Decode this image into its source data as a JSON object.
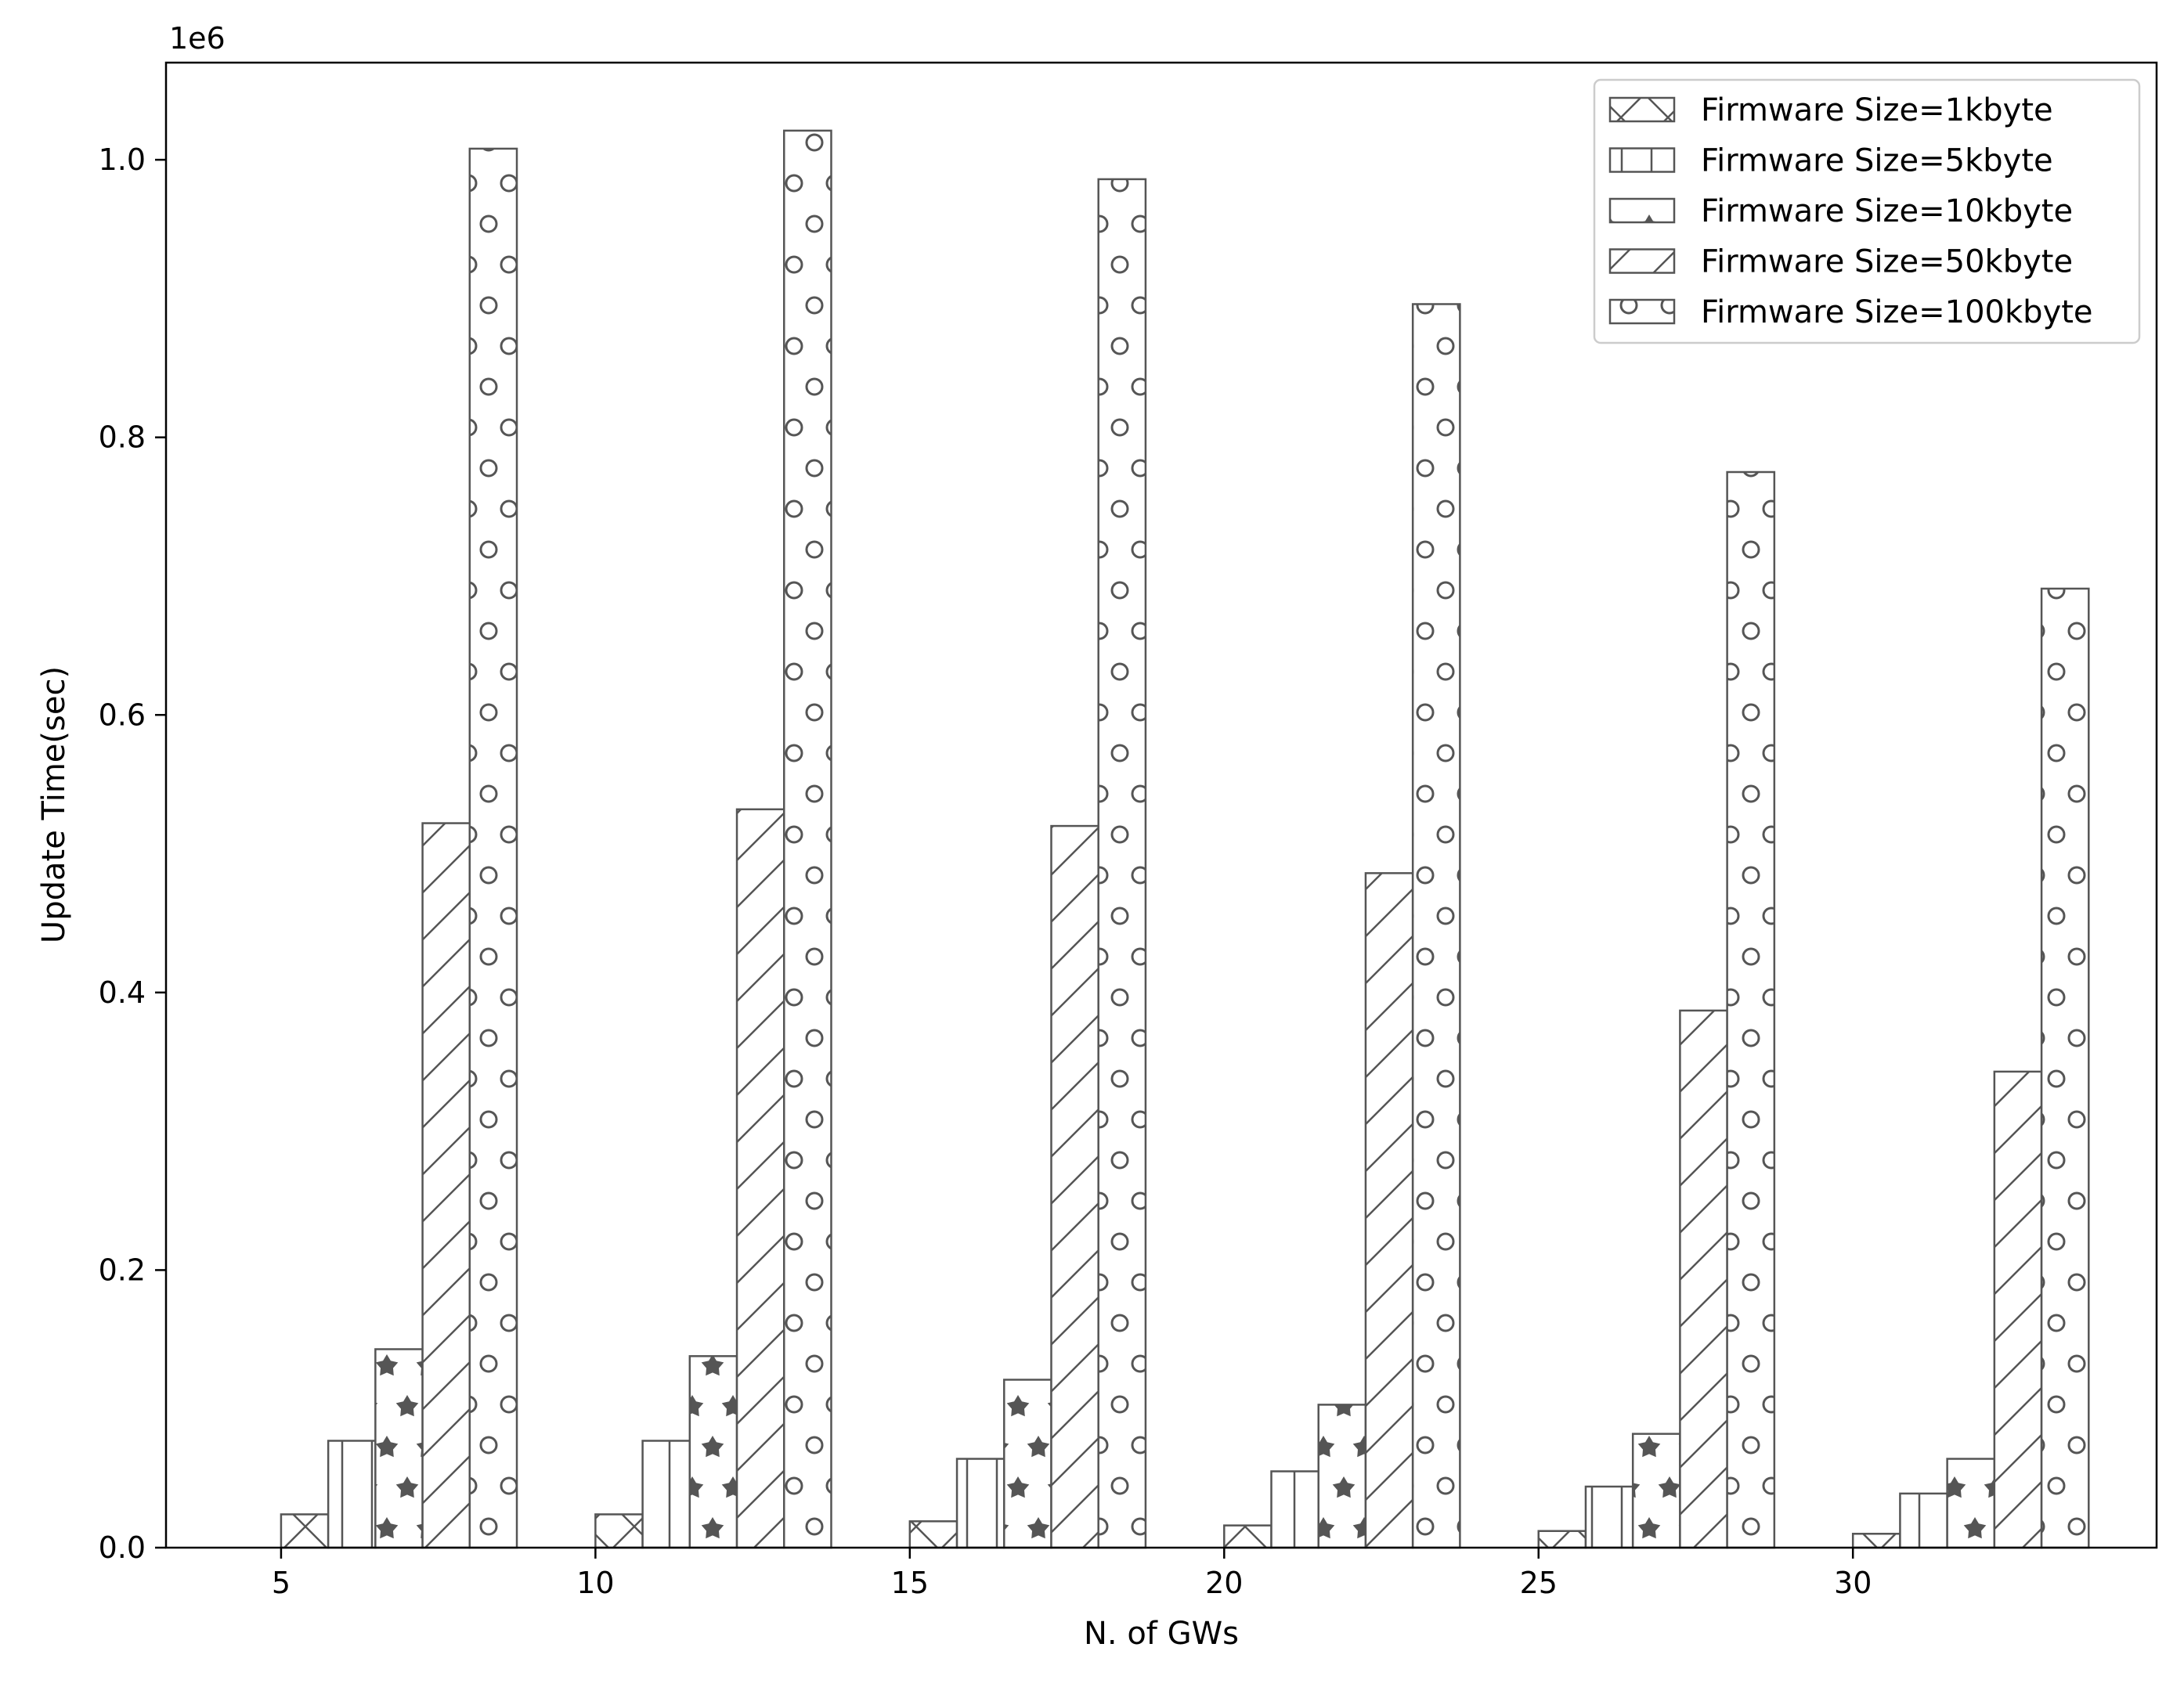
{
  "chart_data": {
    "type": "bar",
    "title": "",
    "xlabel": "N. of GWs",
    "ylabel": "Update Time(sec)",
    "y_scale_label": "1e6",
    "x_ticks": [
      5,
      10,
      15,
      20,
      25,
      30
    ],
    "y_ticks": [
      "0.0",
      "0.2",
      "0.4",
      "0.6",
      "0.8",
      "1.0"
    ],
    "xlim": [
      3.17,
      34.83
    ],
    "ylim": [
      0,
      1.07
    ],
    "grid": false,
    "legend_position": "upper-right",
    "bar_stroke_color": "#555555",
    "star_fill_color": "#555555",
    "group_x": [
      5,
      10,
      15,
      20,
      25,
      30
    ],
    "bar_width": 0.75,
    "series": [
      {
        "name": "Firmware Size=1kbyte",
        "hatch": "cross-diagonal",
        "values": [
          0.024,
          0.024,
          0.019,
          0.016,
          0.012,
          0.01
        ]
      },
      {
        "name": "Firmware Size=5kbyte",
        "hatch": "vertical",
        "values": [
          0.077,
          0.077,
          0.064,
          0.055,
          0.044,
          0.039
        ]
      },
      {
        "name": "Firmware Size=10kbyte",
        "hatch": "star",
        "values": [
          0.143,
          0.138,
          0.121,
          0.103,
          0.082,
          0.064
        ]
      },
      {
        "name": "Firmware Size=50kbyte",
        "hatch": "diagonal",
        "values": [
          0.522,
          0.532,
          0.52,
          0.486,
          0.387,
          0.343
        ]
      },
      {
        "name": "Firmware Size=100kbyte",
        "hatch": "circle",
        "values": [
          1.008,
          1.021,
          0.986,
          0.896,
          0.775,
          0.691
        ]
      }
    ]
  }
}
